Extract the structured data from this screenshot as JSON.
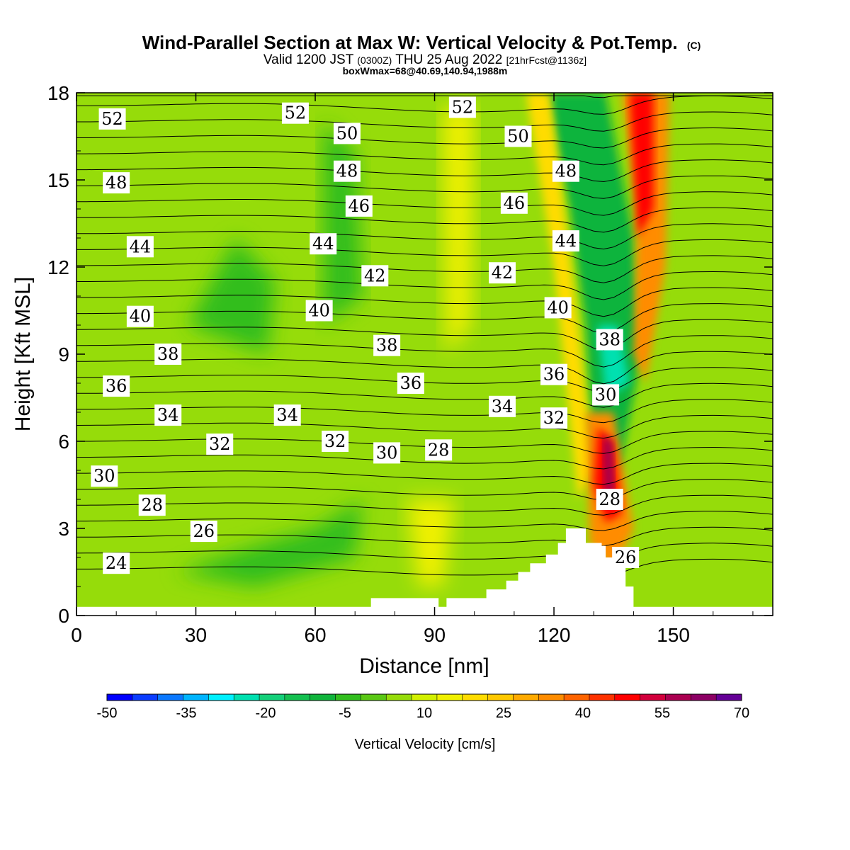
{
  "header": {
    "title_main": "Wind-Parallel Section at Max W: Vertical Velocity & Pot.Temp.",
    "title_copyright": "(C)",
    "valid_prefix": "Valid 1200 JST",
    "valid_utc": "(0300Z)",
    "valid_date": "THU 25 Aug 2022",
    "valid_fcst": "[21hrFcst@1136z]",
    "box_info": "boxWmax=68@40.69,140.94,1988m"
  },
  "colorbar": {
    "label": "Vertical Velocity [cm/s]",
    "levels": [
      -50,
      -45,
      -40,
      -35,
      -30,
      -25,
      -20,
      -15,
      -10,
      -5,
      0,
      5,
      10,
      15,
      20,
      25,
      30,
      35,
      40,
      45,
      50,
      55,
      60,
      65,
      70
    ],
    "tick_labels": [
      "-50",
      "-35",
      "-20",
      "-5",
      "10",
      "25",
      "40",
      "55",
      "70"
    ],
    "colors": [
      "#0000ff",
      "#0a3cff",
      "#0a78ff",
      "#00b4ff",
      "#00f0ff",
      "#00e0b0",
      "#14d07a",
      "#14c050",
      "#10b43c",
      "#32be1e",
      "#5ac814",
      "#96dc0a",
      "#d2f000",
      "#f0f000",
      "#ffdc00",
      "#ffc800",
      "#ffaa00",
      "#ff8c00",
      "#ff6400",
      "#ff3200",
      "#ff0000",
      "#d2003c",
      "#aa0050",
      "#8c0064",
      "#640096"
    ]
  },
  "chart_data": {
    "type": "heatmap",
    "title": "Wind-Parallel Section at Max W: Vertical Velocity & Pot.Temp.",
    "xlabel": "Distance [nm]",
    "ylabel": "Height [Kft MSL]",
    "xlim": [
      0,
      175
    ],
    "ylim": [
      0,
      18
    ],
    "x_ticks": [
      0,
      30,
      60,
      90,
      120,
      150
    ],
    "y_ticks": [
      0,
      3,
      6,
      9,
      12,
      15,
      18
    ],
    "fill_variable": "Vertical Velocity [cm/s]",
    "contour_variable": "Pot.Temp.",
    "background_fill_value": 5,
    "fill_regions": [
      {
        "value": -10,
        "region": "upward band left of the ridge, x 120–138 nm, heights 3–18 Kft"
      },
      {
        "value": -25,
        "region": "core near x 132 nm, heights 7.5–10 Kft"
      },
      {
        "value": -5,
        "region": "x 30–50 nm, heights 10–13 Kft"
      },
      {
        "value": -5,
        "region": "x 62–70 nm, heights 10–17 Kft"
      },
      {
        "value": 15,
        "region": "x 92–100 nm, heights 9–17 Kft"
      },
      {
        "value": 20,
        "region": "band x 115–130 nm, heights 4–18 Kft"
      },
      {
        "value": 65,
        "region": "core x 132–136 nm, heights 4–6 Kft"
      },
      {
        "value": 35,
        "region": "band x 137–150 nm, heights 9–18 Kft"
      },
      {
        "value": 50,
        "region": "core x 140–146 nm, heights 13–18 Kft"
      }
    ],
    "terrain": {
      "x": [
        0,
        74,
        74,
        91,
        91,
        93,
        93,
        103,
        103,
        108,
        108,
        111,
        111,
        114,
        114,
        118,
        118,
        121,
        121,
        123,
        123,
        128,
        128,
        132,
        132,
        133,
        133,
        138,
        138,
        140,
        140,
        147,
        147,
        175
      ],
      "top": [
        0.3,
        0.3,
        0.6,
        0.6,
        0.3,
        0.3,
        0.6,
        0.6,
        0.9,
        0.9,
        1.2,
        1.2,
        1.5,
        1.5,
        1.8,
        1.8,
        2.1,
        2.1,
        2.5,
        2.5,
        3.0,
        3.0,
        2.5,
        2.5,
        2.4,
        2.4,
        2.0,
        2.0,
        1.0,
        1.0,
        0.3,
        0.3,
        0.3,
        0.3
      ]
    },
    "isentrope_labels": [
      {
        "text": "52",
        "x": 9,
        "y": 17.1
      },
      {
        "text": "52",
        "x": 55,
        "y": 17.3
      },
      {
        "text": "52",
        "x": 97,
        "y": 17.5
      },
      {
        "text": "50",
        "x": 68,
        "y": 16.6
      },
      {
        "text": "50",
        "x": 111,
        "y": 16.5
      },
      {
        "text": "48",
        "x": 10,
        "y": 14.9
      },
      {
        "text": "48",
        "x": 68,
        "y": 15.3
      },
      {
        "text": "48",
        "x": 123,
        "y": 15.3
      },
      {
        "text": "46",
        "x": 71,
        "y": 14.1
      },
      {
        "text": "46",
        "x": 110,
        "y": 14.2
      },
      {
        "text": "44",
        "x": 16,
        "y": 12.7
      },
      {
        "text": "44",
        "x": 62,
        "y": 12.8
      },
      {
        "text": "44",
        "x": 123,
        "y": 12.9
      },
      {
        "text": "42",
        "x": 75,
        "y": 11.7
      },
      {
        "text": "42",
        "x": 107,
        "y": 11.8
      },
      {
        "text": "40",
        "x": 16,
        "y": 10.3
      },
      {
        "text": "40",
        "x": 61,
        "y": 10.5
      },
      {
        "text": "40",
        "x": 121,
        "y": 10.6
      },
      {
        "text": "38",
        "x": 23,
        "y": 9.0
      },
      {
        "text": "38",
        "x": 78,
        "y": 9.3
      },
      {
        "text": "38",
        "x": 134,
        "y": 9.5
      },
      {
        "text": "36",
        "x": 10,
        "y": 7.9
      },
      {
        "text": "36",
        "x": 84,
        "y": 8.0
      },
      {
        "text": "36",
        "x": 120,
        "y": 8.3
      },
      {
        "text": "34",
        "x": 23,
        "y": 6.9
      },
      {
        "text": "34",
        "x": 53,
        "y": 6.9
      },
      {
        "text": "34",
        "x": 107,
        "y": 7.2
      },
      {
        "text": "32",
        "x": 36,
        "y": 5.9
      },
      {
        "text": "32",
        "x": 65,
        "y": 6.0
      },
      {
        "text": "32",
        "x": 120,
        "y": 6.8
      },
      {
        "text": "30",
        "x": 7,
        "y": 4.8
      },
      {
        "text": "30",
        "x": 78,
        "y": 5.6
      },
      {
        "text": "30",
        "x": 133,
        "y": 7.6
      },
      {
        "text": "28",
        "x": 19,
        "y": 3.8
      },
      {
        "text": "28",
        "x": 91,
        "y": 5.7
      },
      {
        "text": "28",
        "x": 134,
        "y": 4.0
      },
      {
        "text": "26",
        "x": 32,
        "y": 2.9
      },
      {
        "text": "26",
        "x": 138,
        "y": 2.0
      },
      {
        "text": "24",
        "x": 10,
        "y": 1.8
      }
    ]
  }
}
